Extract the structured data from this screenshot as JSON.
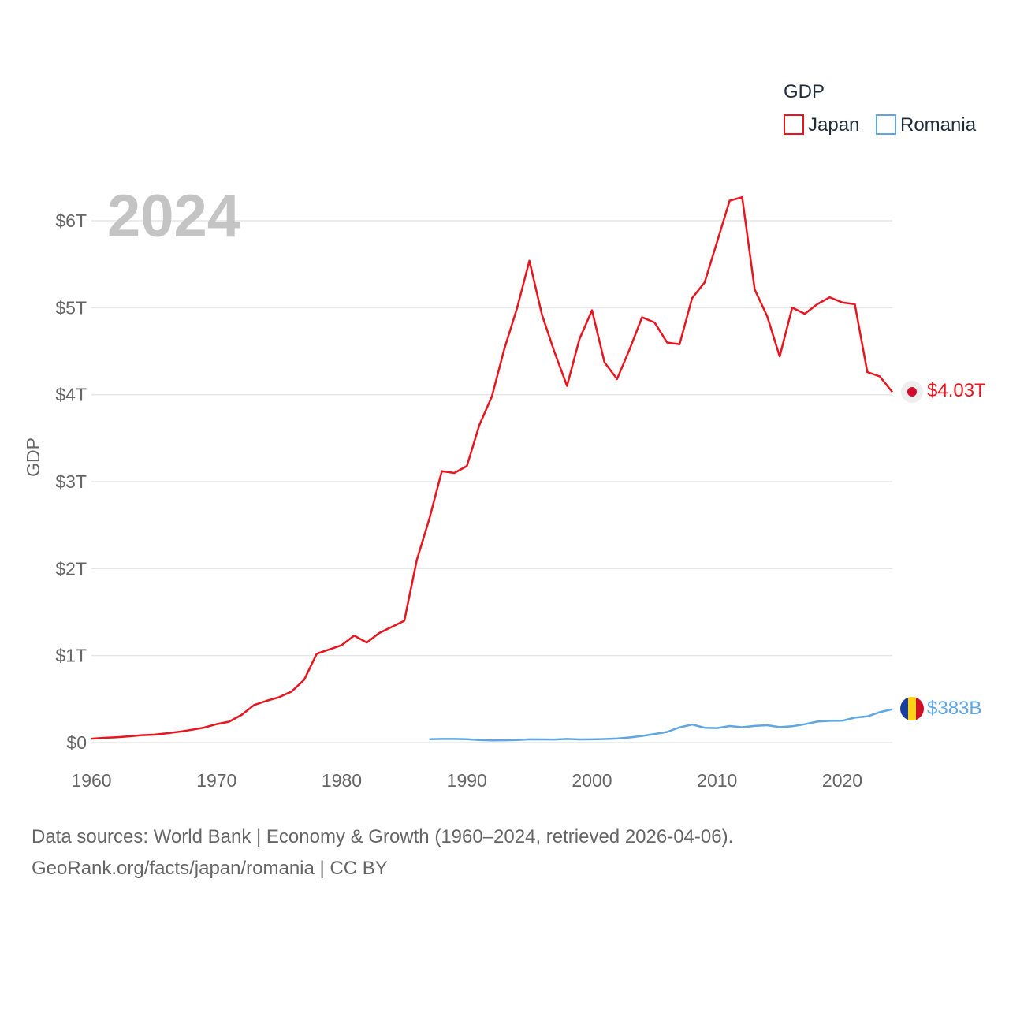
{
  "chart_data": {
    "type": "line",
    "year_label": "2024",
    "ylabel": "GDP",
    "xlim": [
      1960,
      2024
    ],
    "ylim": [
      0,
      6000
    ],
    "y_unit": "billions USD",
    "grid": true,
    "x_ticks": [
      1960,
      1970,
      1980,
      1990,
      2000,
      2010,
      2020
    ],
    "y_ticks": [
      {
        "value": 0,
        "label": "$0"
      },
      {
        "value": 1000,
        "label": "$1T"
      },
      {
        "value": 2000,
        "label": "$2T"
      },
      {
        "value": 3000,
        "label": "$3T"
      },
      {
        "value": 4000,
        "label": "$4T"
      },
      {
        "value": 5000,
        "label": "$5T"
      },
      {
        "value": 6000,
        "label": "$6T"
      }
    ],
    "legend": {
      "title": "GDP",
      "position": "top-right",
      "items": [
        {
          "name": "Japan",
          "color": "#e8141e"
        },
        {
          "name": "Romania",
          "color": "#5fa6e2"
        }
      ]
    },
    "series": [
      {
        "name": "Japan",
        "color": "#e8141e",
        "end_label": "$4.03T",
        "x": [
          1960,
          1961,
          1962,
          1963,
          1964,
          1965,
          1966,
          1967,
          1968,
          1969,
          1970,
          1971,
          1972,
          1973,
          1974,
          1975,
          1976,
          1977,
          1978,
          1979,
          1980,
          1981,
          1982,
          1983,
          1984,
          1985,
          1986,
          1987,
          1988,
          1989,
          1990,
          1991,
          1992,
          1993,
          1994,
          1995,
          1996,
          1997,
          1998,
          1999,
          2000,
          2001,
          2002,
          2003,
          2004,
          2005,
          2006,
          2007,
          2008,
          2009,
          2010,
          2011,
          2012,
          2013,
          2014,
          2015,
          2016,
          2017,
          2018,
          2019,
          2020,
          2021,
          2022,
          2023,
          2024
        ],
        "values": [
          44,
          54,
          62,
          72,
          85,
          91,
          106,
          124,
          147,
          172,
          212,
          240,
          318,
          432,
          480,
          522,
          587,
          722,
          1021,
          1070,
          1120,
          1230,
          1150,
          1260,
          1330,
          1400,
          2100,
          2570,
          3120,
          3100,
          3180,
          3650,
          3980,
          4530,
          4990,
          5540,
          4920,
          4490,
          4100,
          4640,
          4970,
          4370,
          4180,
          4520,
          4890,
          4830,
          4600,
          4580,
          5110,
          5290,
          5760,
          6230,
          6270,
          5210,
          4900,
          4440,
          5000,
          4930,
          5040,
          5120,
          5060,
          5040,
          4260,
          4210,
          4030
        ]
      },
      {
        "name": "Romania",
        "color": "#5fa6e2",
        "end_label": "$383B",
        "x": [
          1987,
          1988,
          1989,
          1990,
          1991,
          1992,
          1993,
          1994,
          1995,
          1996,
          1997,
          1998,
          1999,
          2000,
          2001,
          2002,
          2003,
          2004,
          2005,
          2006,
          2007,
          2008,
          2009,
          2010,
          2011,
          2012,
          2013,
          2014,
          2015,
          2016,
          2017,
          2018,
          2019,
          2020,
          2021,
          2022,
          2023,
          2024
        ],
        "values": [
          39,
          42,
          42,
          38,
          29,
          25,
          26,
          30,
          37,
          36,
          35,
          42,
          36,
          37,
          41,
          46,
          59,
          76,
          99,
          122,
          175,
          208,
          170,
          167,
          190,
          177,
          191,
          199,
          178,
          188,
          211,
          241,
          250,
          251,
          286,
          301,
          350,
          383
        ]
      }
    ]
  },
  "footer": {
    "line1": "Data sources: World Bank | Economy & Growth (1960–2024, retrieved 2026-04-06).",
    "line2": "GeoRank.org/facts/japan/romania | CC BY"
  }
}
